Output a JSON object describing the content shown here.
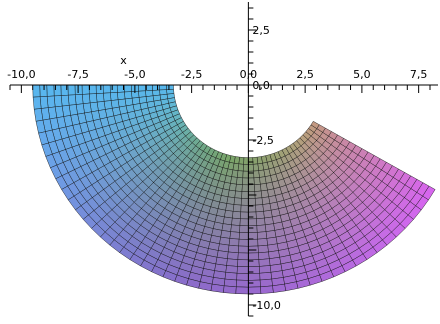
{
  "chart_data": {
    "type": "surface",
    "shape": "polar-annulus-sector",
    "xlabel": "x",
    "ylabel": "",
    "x_ticks": [
      {
        "value": -10,
        "label": "-10,0"
      },
      {
        "value": -7.5,
        "label": "-7,5"
      },
      {
        "value": -5,
        "label": "-5,0"
      },
      {
        "value": -2.5,
        "label": "-2,5"
      },
      {
        "value": 0,
        "label": "0,0"
      },
      {
        "value": 2.5,
        "label": "2,5"
      },
      {
        "value": 5,
        "label": "5,0"
      },
      {
        "value": 7.5,
        "label": "7,5"
      }
    ],
    "y_ticks": [
      {
        "value": 2.5,
        "label": "2,5"
      },
      {
        "value": 0,
        "label": "0,0"
      },
      {
        "value": -2.5,
        "label": "-2,5"
      },
      {
        "value": -10,
        "label": "-10,0"
      }
    ],
    "x_range": [
      -10.5,
      8
    ],
    "y_range": [
      -10.5,
      3.5
    ],
    "region": {
      "inner_radius": 3.3,
      "outer_radius": 9.5,
      "start_angle_deg": 180,
      "end_angle_deg": 330
    },
    "mesh": {
      "radial_divisions": 20,
      "angular_divisions": 45
    },
    "colors": {
      "left": "#57b7ee",
      "bottom": "#a77ff3",
      "right": "#d864ef",
      "inner_top": "#8fc978",
      "inner_right": "#c39b7c",
      "mesh_line": "#111111"
    },
    "grid": false,
    "legend": "none"
  }
}
